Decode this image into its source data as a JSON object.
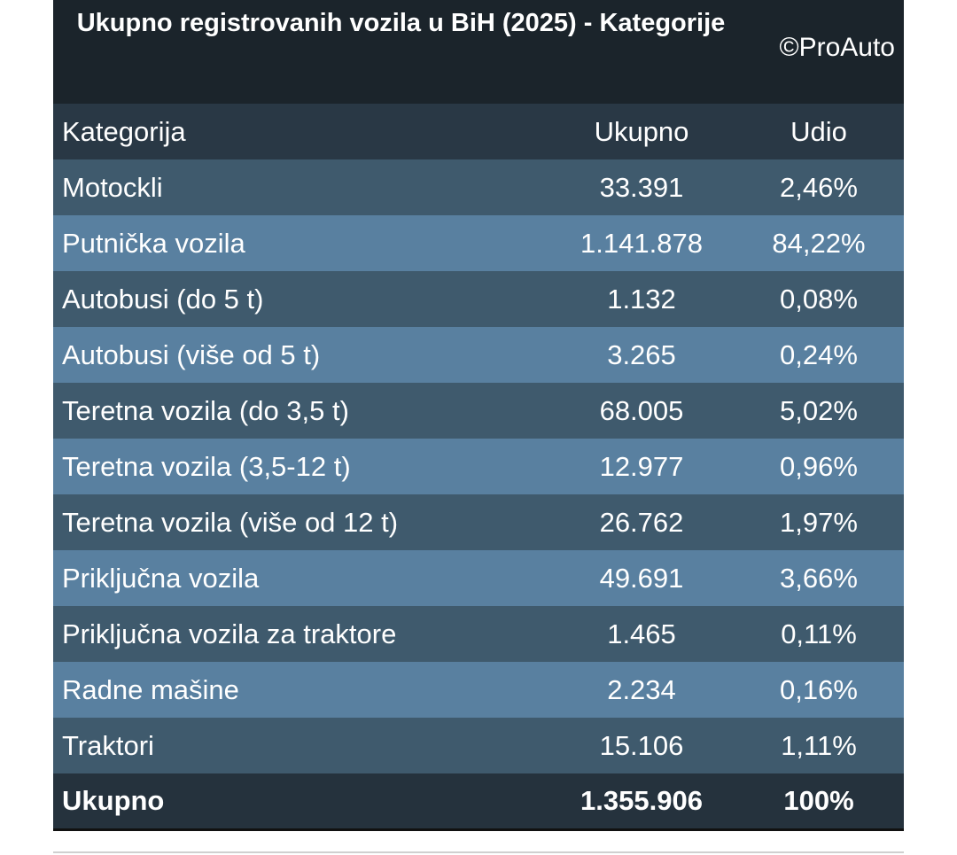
{
  "header": {
    "title": "Ukupno registrovanih vozila u BiH (2025) - Kategorije",
    "brand": "©ProAuto"
  },
  "table": {
    "columns": [
      "Kategorija",
      "Ukupno",
      "Udio"
    ],
    "rows": [
      [
        "Motockli",
        "33.391",
        "2,46%"
      ],
      [
        "Putnička vozila",
        "1.141.878",
        "84,22%"
      ],
      [
        "Autobusi (do 5 t)",
        "1.132",
        "0,08%"
      ],
      [
        "Autobusi (više od 5 t)",
        "3.265",
        "0,24%"
      ],
      [
        "Teretna vozila (do 3,5 t)",
        "68.005",
        "5,02%"
      ],
      [
        "Teretna vozila (3,5-12 t)",
        "12.977",
        "0,96%"
      ],
      [
        "Teretna vozila (više od 12 t)",
        "26.762",
        "1,97%"
      ],
      [
        "Priključna vozila",
        "49.691",
        "3,66%"
      ],
      [
        "Priključna vozila za traktore",
        "1.465",
        "0,11%"
      ],
      [
        "Radne mašine",
        "2.234",
        "0,16%"
      ],
      [
        "Traktori",
        "15.106",
        "1,11%"
      ]
    ],
    "total": [
      "Ukupno",
      "1.355.906",
      "100%"
    ]
  }
}
